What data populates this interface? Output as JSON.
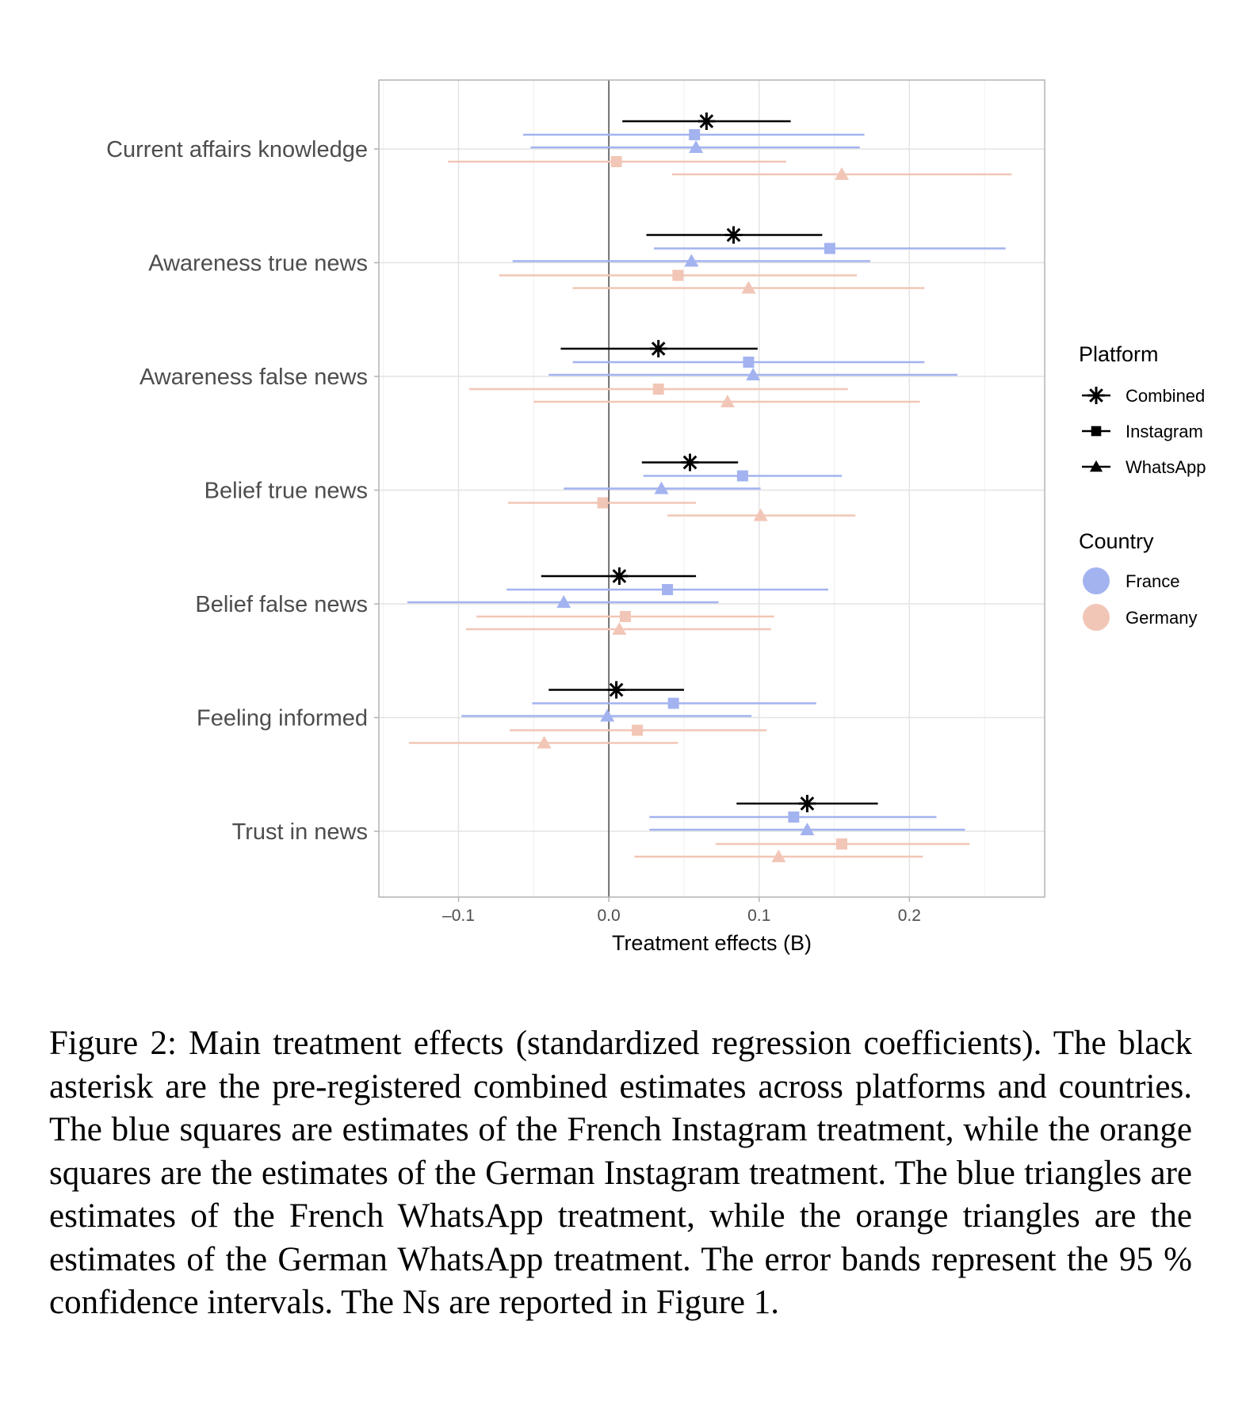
{
  "chart_data": {
    "type": "forest",
    "xlabel": "Treatment effects (B)",
    "xlim": [
      -0.153,
      0.29
    ],
    "xticks": [
      -0.1,
      0.0,
      0.1,
      0.2
    ],
    "xtick_labels": [
      "–0.1",
      "0.0",
      "0.1",
      "0.2"
    ],
    "grid": true,
    "reference_line": 0,
    "categories": [
      "Current affairs knowledge",
      "Awareness true news",
      "Awareness false news",
      "Belief true news",
      "Belief false news",
      "Feeling informed",
      "Trust in news"
    ],
    "series": [
      {
        "name": "Combined",
        "platform": "Combined",
        "country": "Combined",
        "marker": "asterisk",
        "color": "#000000",
        "estimate": [
          0.065,
          0.083,
          0.033,
          0.054,
          0.007,
          0.005,
          0.132
        ],
        "lower": [
          0.009,
          0.025,
          -0.032,
          0.022,
          -0.045,
          -0.04,
          0.085
        ],
        "upper": [
          0.121,
          0.142,
          0.099,
          0.086,
          0.058,
          0.05,
          0.179
        ]
      },
      {
        "name": "France Instagram",
        "platform": "Instagram",
        "country": "France",
        "marker": "square",
        "color": "#a3b3f0",
        "estimate": [
          0.057,
          0.147,
          0.093,
          0.089,
          0.039,
          0.043,
          0.123
        ],
        "lower": [
          -0.057,
          0.03,
          -0.024,
          0.023,
          -0.068,
          -0.051,
          0.027
        ],
        "upper": [
          0.17,
          0.264,
          0.21,
          0.155,
          0.146,
          0.138,
          0.218
        ]
      },
      {
        "name": "France WhatsApp",
        "platform": "WhatsApp",
        "country": "France",
        "marker": "triangle",
        "color": "#a3b3f0",
        "estimate": [
          0.058,
          0.055,
          0.096,
          0.035,
          -0.03,
          -0.001,
          0.132
        ],
        "lower": [
          -0.052,
          -0.064,
          -0.04,
          -0.03,
          -0.134,
          -0.098,
          0.027
        ],
        "upper": [
          0.167,
          0.174,
          0.232,
          0.101,
          0.073,
          0.095,
          0.237
        ]
      },
      {
        "name": "Germany Instagram",
        "platform": "Instagram",
        "country": "Germany",
        "marker": "square",
        "color": "#f2c6b6",
        "estimate": [
          0.005,
          0.046,
          0.033,
          -0.004,
          0.011,
          0.019,
          0.155
        ],
        "lower": [
          -0.107,
          -0.073,
          -0.093,
          -0.067,
          -0.088,
          -0.066,
          0.071
        ],
        "upper": [
          0.118,
          0.165,
          0.159,
          0.058,
          0.11,
          0.105,
          0.24
        ]
      },
      {
        "name": "Germany WhatsApp",
        "platform": "WhatsApp",
        "country": "Germany",
        "marker": "triangle",
        "color": "#f2c6b6",
        "estimate": [
          0.155,
          0.093,
          0.079,
          0.101,
          0.007,
          -0.043,
          0.113
        ],
        "lower": [
          0.042,
          -0.024,
          -0.05,
          0.039,
          -0.095,
          -0.133,
          0.017
        ],
        "upper": [
          0.268,
          0.21,
          0.207,
          0.164,
          0.108,
          0.046,
          0.209
        ]
      }
    ],
    "legend": {
      "placement": "right",
      "platform_title": "Platform",
      "platform_items": [
        {
          "label": "Combined",
          "marker": "asterisk"
        },
        {
          "label": "Instagram",
          "marker": "square"
        },
        {
          "label": "WhatsApp",
          "marker": "triangle"
        }
      ],
      "country_title": "Country",
      "country_items": [
        {
          "label": "France",
          "color": "#a3b3f0"
        },
        {
          "label": "Germany",
          "color": "#f2c6b6"
        }
      ]
    }
  },
  "caption": "Figure 2:  Main treatment effects (standardized regression coefficients).  The black asterisk are the pre-registered combined estimates across platforms and countries.  The blue squares are estimates of the French Instagram treatment, while the orange squares are the estimates of the German Instagram treatment. The blue triangles are estimates of the French WhatsApp treatment, while the orange triangles are the estimates of the German WhatsApp treatment.  The error bands represent the 95 % confidence intervals.  The Ns are reported in Figure 1."
}
